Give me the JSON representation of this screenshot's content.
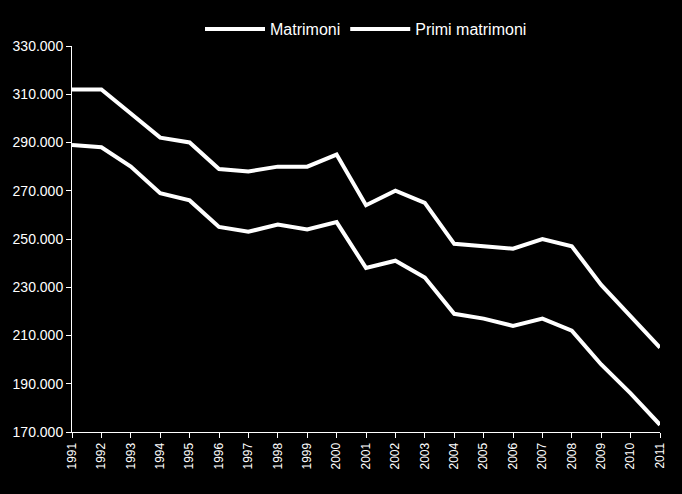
{
  "chart_data": {
    "type": "line",
    "categories": [
      "1991",
      "1992",
      "1993",
      "1994",
      "1995",
      "1996",
      "1997",
      "1998",
      "1999",
      "2000",
      "2001",
      "2002",
      "2003",
      "2004",
      "2005",
      "2006",
      "2007",
      "2008",
      "2009",
      "2010",
      "2011"
    ],
    "series": [
      {
        "name": "Matrimoni",
        "color": "#ffffff",
        "values": [
          312000,
          312000,
          302000,
          292000,
          290000,
          279000,
          278000,
          280000,
          280000,
          285000,
          264000,
          270000,
          265000,
          248000,
          247000,
          246000,
          250000,
          247000,
          231000,
          218000,
          205000
        ]
      },
      {
        "name": "Primi matrimoni",
        "color": "#ffffff",
        "values": [
          289000,
          288000,
          280000,
          269000,
          266000,
          255000,
          253000,
          256000,
          254000,
          257000,
          238000,
          241000,
          234000,
          219000,
          217000,
          214000,
          217000,
          212000,
          198000,
          186000,
          173000
        ]
      }
    ],
    "ylim": [
      170000,
      330000
    ],
    "yticks": [
      {
        "value": 170000,
        "label": "170.000"
      },
      {
        "value": 190000,
        "label": "190.000"
      },
      {
        "value": 210000,
        "label": "210.000"
      },
      {
        "value": 230000,
        "label": "230.000"
      },
      {
        "value": 250000,
        "label": "250.000"
      },
      {
        "value": 270000,
        "label": "270.000"
      },
      {
        "value": 290000,
        "label": "290.000"
      },
      {
        "value": 310000,
        "label": "310.000"
      },
      {
        "value": 330000,
        "label": "330.000"
      }
    ],
    "grid": false,
    "legend": "top"
  }
}
